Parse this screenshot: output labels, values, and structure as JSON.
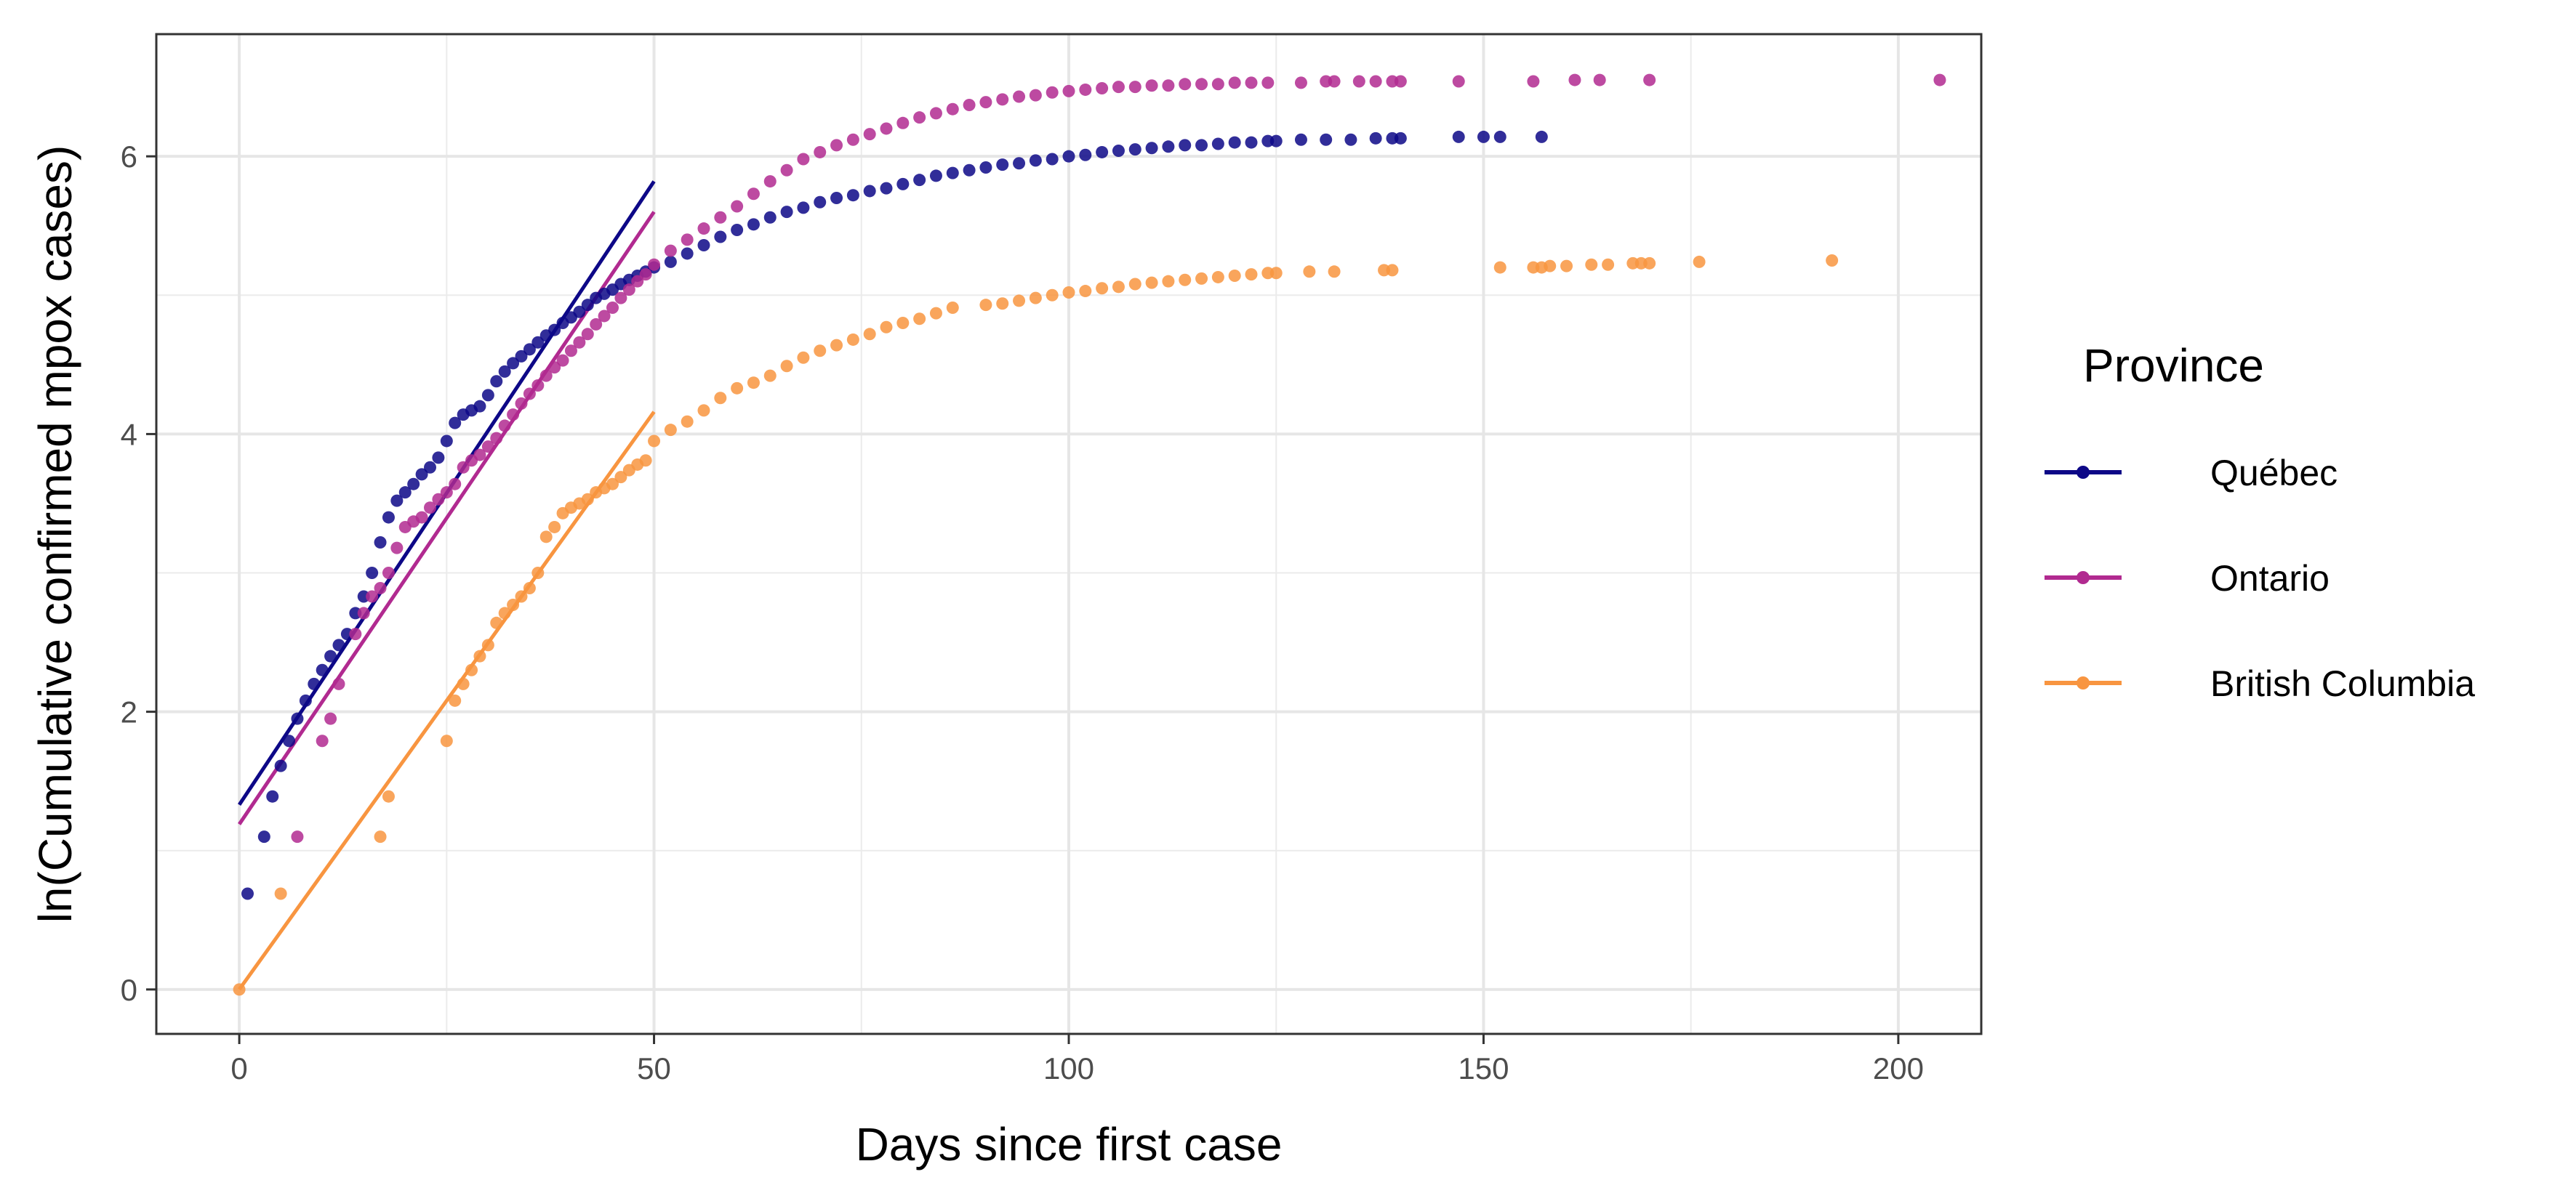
{
  "chart_data": {
    "type": "scatter",
    "title": "",
    "xlabel": "Days since first case",
    "ylabel": "ln(Cumulative confirmed mpox cases)",
    "xlim": [
      -10,
      210
    ],
    "ylim": [
      -0.32,
      6.88
    ],
    "x_ticks": [
      0,
      50,
      100,
      150,
      200
    ],
    "y_ticks": [
      0,
      2,
      4,
      6
    ],
    "grid": true,
    "legend": {
      "title": "Province",
      "position": "right"
    },
    "series": [
      {
        "name": "Québec",
        "color": "#0d0887",
        "fit": {
          "x": [
            0,
            50
          ],
          "y": [
            1.33,
            5.82
          ]
        },
        "x": [
          1,
          3,
          4,
          5,
          6,
          7,
          8,
          9,
          10,
          11,
          12,
          13,
          14,
          15,
          16,
          17,
          18,
          19,
          20,
          21,
          22,
          23,
          24,
          25,
          26,
          27,
          28,
          29,
          30,
          31,
          32,
          33,
          34,
          35,
          36,
          37,
          38,
          39,
          40,
          41,
          42,
          43,
          44,
          45,
          46,
          47,
          48,
          49,
          50,
          52,
          54,
          56,
          58,
          60,
          62,
          64,
          66,
          68,
          70,
          72,
          74,
          76,
          78,
          80,
          82,
          84,
          86,
          88,
          90,
          92,
          94,
          96,
          98,
          100,
          102,
          104,
          106,
          108,
          110,
          112,
          114,
          116,
          118,
          120,
          122,
          124,
          125,
          128,
          131,
          134,
          137,
          139,
          140,
          147,
          150,
          152,
          157
        ],
        "y": [
          0.69,
          1.1,
          1.39,
          1.61,
          1.79,
          1.95,
          2.08,
          2.2,
          2.3,
          2.4,
          2.48,
          2.56,
          2.71,
          2.83,
          3.0,
          3.22,
          3.4,
          3.52,
          3.58,
          3.64,
          3.71,
          3.76,
          3.83,
          3.95,
          4.08,
          4.14,
          4.17,
          4.2,
          4.28,
          4.38,
          4.45,
          4.51,
          4.56,
          4.61,
          4.66,
          4.71,
          4.75,
          4.8,
          4.84,
          4.88,
          4.93,
          4.98,
          5.01,
          5.04,
          5.08,
          5.11,
          5.14,
          5.17,
          5.2,
          5.24,
          5.3,
          5.36,
          5.42,
          5.47,
          5.51,
          5.56,
          5.6,
          5.63,
          5.67,
          5.7,
          5.72,
          5.75,
          5.77,
          5.8,
          5.83,
          5.86,
          5.88,
          5.9,
          5.92,
          5.94,
          5.95,
          5.97,
          5.98,
          6.0,
          6.01,
          6.03,
          6.04,
          6.05,
          6.06,
          6.07,
          6.08,
          6.08,
          6.09,
          6.1,
          6.1,
          6.11,
          6.11,
          6.12,
          6.12,
          6.12,
          6.13,
          6.13,
          6.13,
          6.14,
          6.14,
          6.14,
          6.14
        ]
      },
      {
        "name": "Ontario",
        "color": "#b12a90",
        "fit": {
          "x": [
            0,
            50
          ],
          "y": [
            1.19,
            5.6
          ]
        },
        "x": [
          7,
          10,
          11,
          12,
          14,
          15,
          16,
          17,
          18,
          19,
          20,
          21,
          22,
          23,
          24,
          25,
          26,
          27,
          28,
          29,
          30,
          31,
          32,
          33,
          34,
          35,
          36,
          37,
          38,
          39,
          40,
          41,
          42,
          43,
          44,
          45,
          46,
          47,
          48,
          49,
          50,
          52,
          54,
          56,
          58,
          60,
          62,
          64,
          66,
          68,
          70,
          72,
          74,
          76,
          78,
          80,
          82,
          84,
          86,
          88,
          90,
          92,
          94,
          96,
          98,
          100,
          102,
          104,
          106,
          108,
          110,
          112,
          114,
          116,
          118,
          120,
          122,
          124,
          128,
          131,
          132,
          135,
          137,
          139,
          140,
          147,
          156,
          161,
          164,
          170,
          205
        ],
        "y": [
          1.1,
          1.79,
          1.95,
          2.2,
          2.56,
          2.71,
          2.83,
          2.89,
          3.0,
          3.18,
          3.33,
          3.37,
          3.4,
          3.47,
          3.53,
          3.58,
          3.64,
          3.76,
          3.81,
          3.85,
          3.91,
          3.97,
          4.06,
          4.14,
          4.22,
          4.29,
          4.35,
          4.42,
          4.48,
          4.53,
          4.6,
          4.66,
          4.72,
          4.79,
          4.85,
          4.91,
          4.98,
          5.04,
          5.1,
          5.15,
          5.22,
          5.32,
          5.4,
          5.48,
          5.56,
          5.64,
          5.73,
          5.82,
          5.9,
          5.98,
          6.03,
          6.08,
          6.12,
          6.16,
          6.2,
          6.24,
          6.28,
          6.31,
          6.34,
          6.37,
          6.39,
          6.41,
          6.43,
          6.44,
          6.46,
          6.47,
          6.48,
          6.49,
          6.5,
          6.5,
          6.51,
          6.51,
          6.52,
          6.52,
          6.52,
          6.53,
          6.53,
          6.53,
          6.53,
          6.54,
          6.54,
          6.54,
          6.54,
          6.54,
          6.54,
          6.54,
          6.54,
          6.55,
          6.55,
          6.55,
          6.55
        ]
      },
      {
        "name": "British Columbia",
        "color": "#f89540",
        "fit": {
          "x": [
            0,
            50
          ],
          "y": [
            0.0,
            4.16
          ]
        },
        "x": [
          0,
          5,
          17,
          18,
          25,
          26,
          27,
          28,
          29,
          30,
          31,
          32,
          33,
          34,
          35,
          36,
          37,
          38,
          39,
          40,
          41,
          42,
          43,
          44,
          45,
          46,
          47,
          48,
          49,
          50,
          52,
          54,
          56,
          58,
          60,
          62,
          64,
          66,
          68,
          70,
          72,
          74,
          76,
          78,
          80,
          82,
          84,
          86,
          90,
          92,
          94,
          96,
          98,
          100,
          102,
          104,
          106,
          108,
          110,
          112,
          114,
          116,
          118,
          120,
          122,
          124,
          125,
          129,
          132,
          138,
          139,
          152,
          156,
          157,
          158,
          160,
          163,
          165,
          168,
          169,
          170,
          176,
          192
        ],
        "y": [
          0.0,
          0.69,
          1.1,
          1.39,
          1.79,
          2.08,
          2.2,
          2.3,
          2.4,
          2.48,
          2.64,
          2.71,
          2.77,
          2.83,
          2.89,
          3.0,
          3.26,
          3.33,
          3.43,
          3.47,
          3.5,
          3.53,
          3.58,
          3.61,
          3.64,
          3.69,
          3.74,
          3.78,
          3.81,
          3.95,
          4.03,
          4.09,
          4.17,
          4.26,
          4.33,
          4.37,
          4.42,
          4.49,
          4.55,
          4.6,
          4.64,
          4.68,
          4.72,
          4.77,
          4.8,
          4.83,
          4.87,
          4.91,
          4.93,
          4.94,
          4.96,
          4.98,
          5.0,
          5.02,
          5.03,
          5.05,
          5.06,
          5.08,
          5.09,
          5.1,
          5.11,
          5.12,
          5.13,
          5.14,
          5.15,
          5.16,
          5.16,
          5.17,
          5.17,
          5.18,
          5.18,
          5.2,
          5.2,
          5.2,
          5.21,
          5.21,
          5.22,
          5.22,
          5.23,
          5.23,
          5.23,
          5.24,
          5.25
        ]
      }
    ]
  }
}
